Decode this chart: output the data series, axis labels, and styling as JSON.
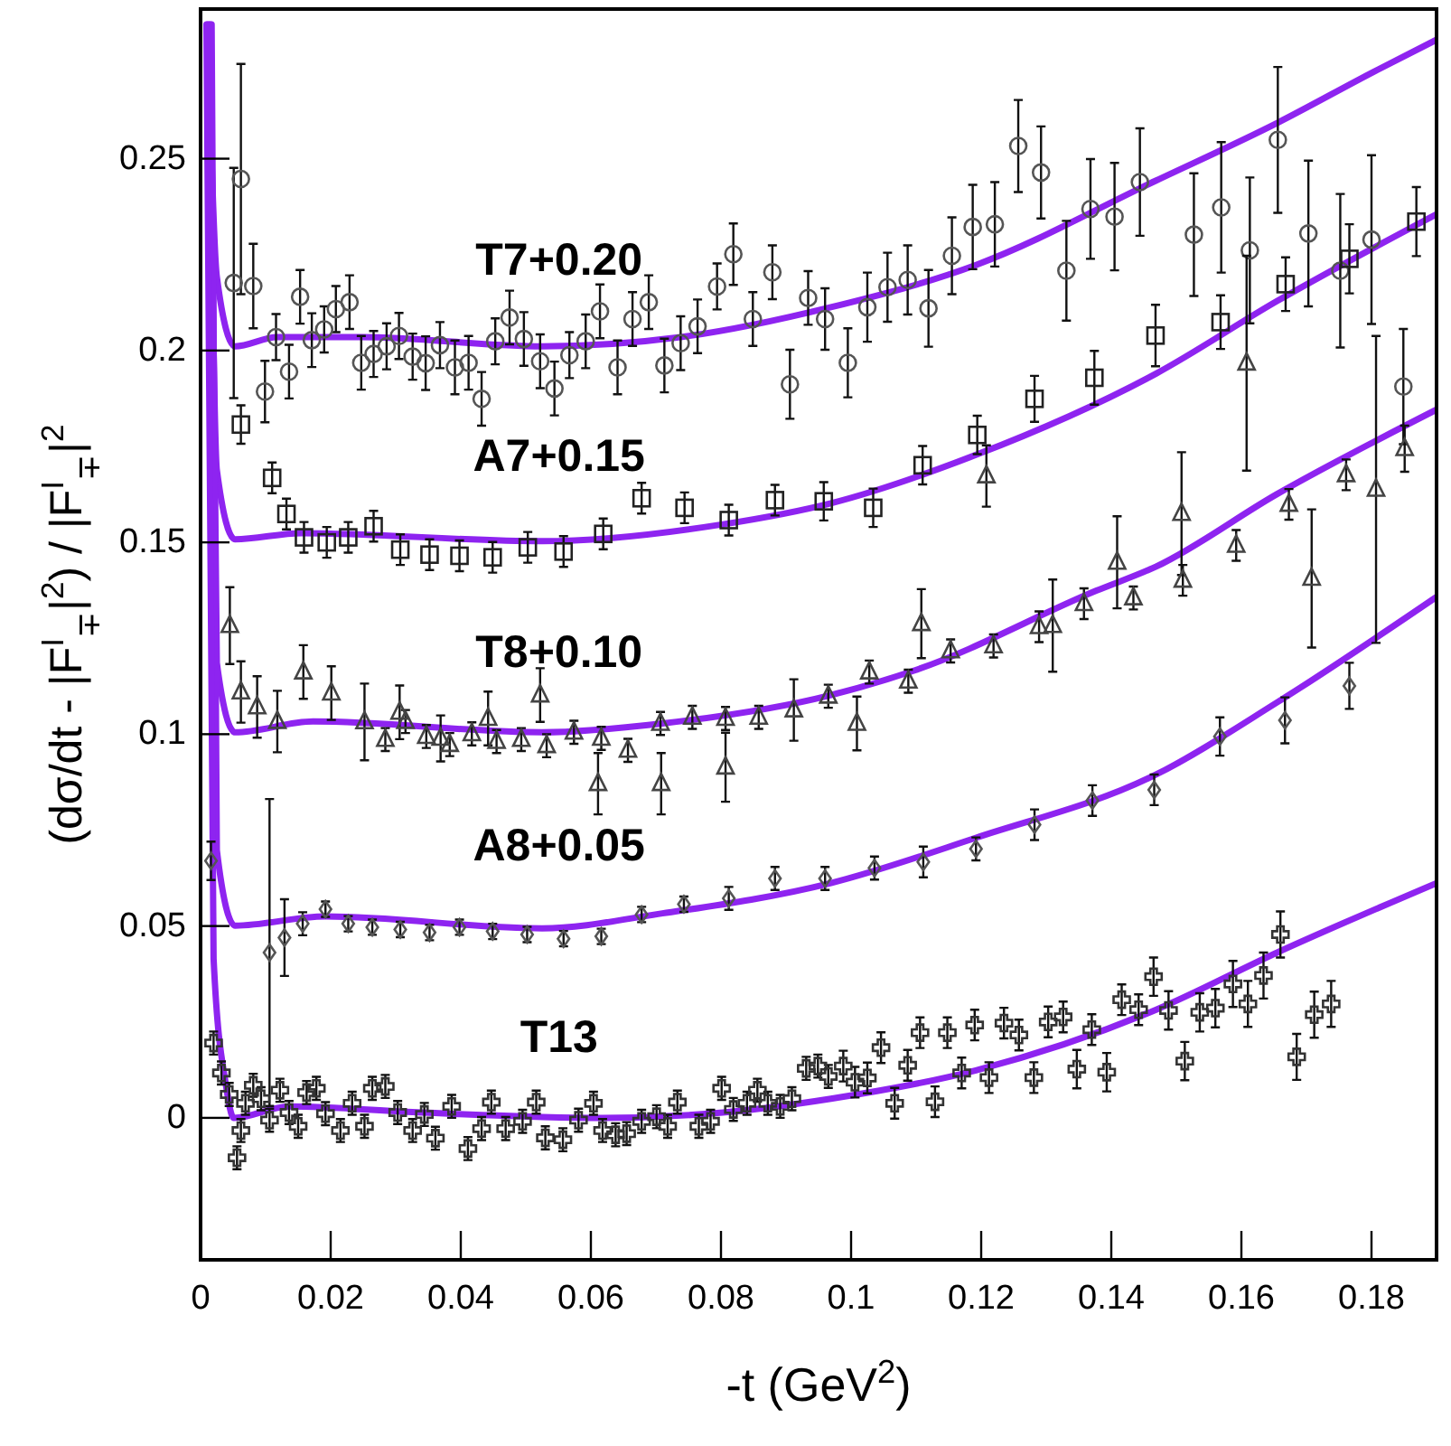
{
  "chart_data": {
    "type": "scatter",
    "xlabel": "-t (GeV$^{2}$)",
    "ylabel": "(dσ/dt - |F$^{I}$$_{∓}$|$^{2}$) / |F$^{I}$$_{∓}$|$^{2}$",
    "xlim": [
      0,
      0.19
    ],
    "ylim": [
      -0.037,
      0.289
    ],
    "xticks": [
      0,
      0.02,
      0.04,
      0.06,
      0.08,
      0.1,
      0.12,
      0.14,
      0.16,
      0.18
    ],
    "yticks": [
      0,
      0.05,
      0.1,
      0.15,
      0.2,
      0.25
    ],
    "series": [
      {
        "name": "T7+0.20",
        "marker": "circle",
        "color": "#555555",
        "x": [
          0.0062,
          0.0051,
          0.0081,
          0.0099,
          0.0116,
          0.0136,
          0.0153,
          0.0171,
          0.019,
          0.0208,
          0.0229,
          0.0247,
          0.0266,
          0.0286,
          0.0305,
          0.0326,
          0.0346,
          0.0368,
          0.0391,
          0.0412,
          0.0432,
          0.0453,
          0.0475,
          0.0497,
          0.0522,
          0.0544,
          0.0567,
          0.0592,
          0.0614,
          0.0641,
          0.0664,
          0.0689,
          0.0713,
          0.0738,
          0.0764,
          0.0794,
          0.0819,
          0.0849,
          0.0879,
          0.0906,
          0.0934,
          0.096,
          0.0995,
          0.1025,
          0.1056,
          0.1087,
          0.1119,
          0.1155,
          0.1187,
          0.1221,
          0.1257,
          0.1292,
          0.1331,
          0.1368,
          0.1405,
          0.1444,
          0.1527,
          0.1569,
          0.1613,
          0.1656,
          0.1703,
          0.1752,
          0.18,
          0.1849
        ],
        "values": [
          0.2447,
          0.2176,
          0.2168,
          0.1893,
          0.2035,
          0.1945,
          0.214,
          0.2027,
          0.2055,
          0.2108,
          0.2126,
          0.1968,
          0.1991,
          0.2011,
          0.2038,
          0.1984,
          0.1967,
          0.2014,
          0.1956,
          0.1968,
          0.1874,
          0.2024,
          0.2086,
          0.203,
          0.1972,
          0.1901,
          0.1988,
          0.2024,
          0.2102,
          0.1956,
          0.2082,
          0.2126,
          0.1961,
          0.2019,
          0.2063,
          0.2167,
          0.2251,
          0.2082,
          0.2204,
          0.1912,
          0.2137,
          0.2082,
          0.1968,
          0.2113,
          0.2165,
          0.2184,
          0.211,
          0.2247,
          0.2322,
          0.2329,
          0.2533,
          0.2464,
          0.2208,
          0.2369,
          0.2349,
          0.2439,
          0.2302,
          0.2373,
          0.2261,
          0.2549,
          0.2305,
          0.2208,
          0.2289,
          0.1906
        ],
        "errors": [
          0.03,
          0.03,
          0.011,
          0.008,
          0.006,
          0.007,
          0.007,
          0.007,
          0.006,
          0.006,
          0.007,
          0.007,
          0.006,
          0.006,
          0.006,
          0.006,
          0.007,
          0.006,
          0.007,
          0.007,
          0.007,
          0.006,
          0.007,
          0.007,
          0.007,
          0.007,
          0.006,
          0.007,
          0.007,
          0.007,
          0.007,
          0.007,
          0.007,
          0.007,
          0.007,
          0.006,
          0.008,
          0.007,
          0.007,
          0.009,
          0.007,
          0.008,
          0.009,
          0.009,
          0.009,
          0.009,
          0.01,
          0.01,
          0.011,
          0.011,
          0.012,
          0.012,
          0.013,
          0.013,
          0.014,
          0.014,
          0.016,
          0.017,
          0.019,
          0.019,
          0.019,
          0.02,
          0.022,
          0.015
        ]
      },
      {
        "name": "A7+0.15",
        "marker": "square",
        "color": "#222222",
        "x": [
          0.0062,
          0.011,
          0.0132,
          0.0159,
          0.0194,
          0.0227,
          0.0266,
          0.0307,
          0.0352,
          0.0398,
          0.0449,
          0.0503,
          0.0558,
          0.0619,
          0.0678,
          0.0744,
          0.0812,
          0.0883,
          0.0958,
          0.1034,
          0.111,
          0.1194,
          0.1282,
          0.1374,
          0.1468,
          0.1568,
          0.1668,
          0.1766,
          0.1869
        ],
        "values": [
          0.1807,
          0.1668,
          0.1574,
          0.1513,
          0.15,
          0.1513,
          0.1542,
          0.1481,
          0.1468,
          0.1465,
          0.1461,
          0.1487,
          0.1476,
          0.1522,
          0.1615,
          0.159,
          0.1558,
          0.161,
          0.1607,
          0.159,
          0.1701,
          0.178,
          0.1874,
          0.1929,
          0.2039,
          0.2074,
          0.2173,
          0.2239,
          0.2336
        ],
        "errors": [
          0.005,
          0.004,
          0.004,
          0.004,
          0.004,
          0.004,
          0.004,
          0.004,
          0.004,
          0.004,
          0.004,
          0.004,
          0.004,
          0.004,
          0.004,
          0.004,
          0.004,
          0.004,
          0.005,
          0.005,
          0.005,
          0.005,
          0.006,
          0.007,
          0.008,
          0.007,
          0.007,
          0.009,
          0.009
        ]
      },
      {
        "name": "T8+0.10",
        "marker": "triangle",
        "color": "#444444",
        "x": [
          0.0045,
          0.0062,
          0.0087,
          0.0118,
          0.0158,
          0.0201,
          0.0252,
          0.0284,
          0.0306,
          0.0315,
          0.0347,
          0.0369,
          0.0383,
          0.0417,
          0.0442,
          0.0455,
          0.0493,
          0.0522,
          0.0532,
          0.0574,
          0.0616,
          0.0611,
          0.0657,
          0.0708,
          0.0707,
          0.0756,
          0.0807,
          0.0807,
          0.0858,
          0.0912,
          0.0965,
          0.1009,
          0.1028,
          0.1088,
          0.1108,
          0.1153,
          0.1208,
          0.1219,
          0.1289,
          0.131,
          0.1358,
          0.1409,
          0.1434,
          0.151,
          0.1508,
          0.1592,
          0.1608,
          0.1673,
          0.1708,
          0.1761,
          0.1807,
          0.1851
        ],
        "values": [
          0.1283,
          0.111,
          0.1071,
          0.1033,
          0.1162,
          0.1107,
          0.1032,
          0.0986,
          0.1057,
          0.1033,
          0.0994,
          0.0989,
          0.0973,
          0.1001,
          0.1041,
          0.0981,
          0.0986,
          0.1102,
          0.097,
          0.1005,
          0.0989,
          0.0871,
          0.0958,
          0.0871,
          0.1028,
          0.1044,
          0.0914,
          0.1041,
          0.1044,
          0.1063,
          0.1099,
          0.1028,
          0.1162,
          0.1138,
          0.1288,
          0.1217,
          0.1673,
          0.123,
          0.128,
          0.1283,
          0.134,
          0.1448,
          0.1355,
          0.1401,
          0.1575,
          0.1492,
          0.1967,
          0.1599,
          0.1406,
          0.1676,
          0.1638,
          0.1744
        ],
        "errors": [
          0.01,
          0.008,
          0.008,
          0.008,
          0.007,
          0.007,
          0.01,
          0.003,
          0.007,
          0.003,
          0.003,
          0.006,
          0.003,
          0.003,
          0.007,
          0.003,
          0.003,
          0.007,
          0.003,
          0.003,
          0.003,
          0.008,
          0.003,
          0.008,
          0.003,
          0.003,
          0.009,
          0.003,
          0.003,
          0.008,
          0.003,
          0.007,
          0.003,
          0.003,
          0.009,
          0.003,
          0.008,
          0.003,
          0.004,
          0.012,
          0.004,
          0.012,
          0.003,
          0.004,
          0.016,
          0.004,
          0.028,
          0.004,
          0.018,
          0.004,
          0.04,
          0.006
        ]
      },
      {
        "name": "A8+0.05",
        "marker": "diamond",
        "color": "#555555",
        "x": [
          0.0016,
          0.0106,
          0.0129,
          0.0157,
          0.0192,
          0.0227,
          0.0264,
          0.0307,
          0.0352,
          0.0398,
          0.0449,
          0.0502,
          0.0558,
          0.0616,
          0.0678,
          0.0743,
          0.0812,
          0.0883,
          0.096,
          0.1036,
          0.1111,
          0.1192,
          0.1282,
          0.1371,
          0.1466,
          0.1567,
          0.1667,
          0.1766
        ],
        "values": [
          0.067,
          0.0431,
          0.047,
          0.0506,
          0.0544,
          0.0506,
          0.0497,
          0.0491,
          0.0483,
          0.0497,
          0.0486,
          0.0478,
          0.0467,
          0.0473,
          0.053,
          0.0557,
          0.0572,
          0.0624,
          0.0624,
          0.0651,
          0.0667,
          0.0701,
          0.0764,
          0.0827,
          0.0855,
          0.0994,
          0.1036,
          0.1126
        ],
        "errors": [
          0.005,
          0.04,
          0.01,
          0.003,
          0.002,
          0.002,
          0.002,
          0.002,
          0.002,
          0.002,
          0.002,
          0.002,
          0.002,
          0.002,
          0.002,
          0.002,
          0.003,
          0.003,
          0.003,
          0.003,
          0.004,
          0.003,
          0.004,
          0.004,
          0.004,
          0.005,
          0.006,
          0.006
        ]
      },
      {
        "name": "T13",
        "marker": "cross",
        "color": "#333333",
        "x": [
          0.002,
          0.0032,
          0.0044,
          0.0056,
          0.0062,
          0.0069,
          0.0081,
          0.0093,
          0.0106,
          0.0122,
          0.0136,
          0.015,
          0.0163,
          0.0178,
          0.0192,
          0.0215,
          0.0233,
          0.0252,
          0.0264,
          0.0284,
          0.0303,
          0.0326,
          0.0344,
          0.0361,
          0.0386,
          0.0411,
          0.0432,
          0.0447,
          0.0469,
          0.0495,
          0.0516,
          0.053,
          0.0557,
          0.0581,
          0.0604,
          0.0618,
          0.0638,
          0.0655,
          0.0678,
          0.0701,
          0.0718,
          0.0733,
          0.0766,
          0.0784,
          0.0801,
          0.0819,
          0.084,
          0.0856,
          0.0872,
          0.0891,
          0.0909,
          0.0931,
          0.0949,
          0.0965,
          0.0988,
          0.1006,
          0.1025,
          0.1046,
          0.1067,
          0.1087,
          0.1106,
          0.1129,
          0.1148,
          0.117,
          0.119,
          0.1212,
          0.1235,
          0.1258,
          0.1281,
          0.1303,
          0.1326,
          0.1347,
          0.137,
          0.1393,
          0.1416,
          0.1442,
          0.1465,
          0.1488,
          0.1513,
          0.1536,
          0.156,
          0.1587,
          0.161,
          0.1634,
          0.166,
          0.1685,
          0.1712,
          0.1738
        ],
        "values": [
          0.0195,
          0.0117,
          0.0061,
          -0.0104,
          -0.0033,
          0.0038,
          0.0085,
          0.005,
          -0.0006,
          0.0072,
          0.0014,
          -0.0022,
          0.0066,
          0.0077,
          0.0011,
          -0.0033,
          0.0038,
          -0.0022,
          0.0077,
          0.0082,
          0.0014,
          -0.0033,
          0.0009,
          -0.0053,
          0.003,
          -0.008,
          -0.0028,
          0.0041,
          -0.0028,
          -0.0009,
          0.0041,
          -0.0052,
          -0.0057,
          -0.0006,
          0.0038,
          -0.0033,
          -0.0044,
          -0.0041,
          -0.0009,
          0.0003,
          -0.0022,
          0.0041,
          -0.0022,
          -0.0009,
          0.0077,
          0.0022,
          0.0038,
          0.0072,
          0.0038,
          0.003,
          0.005,
          0.0129,
          0.0135,
          0.0108,
          0.0135,
          0.0093,
          0.0104,
          0.0183,
          0.0038,
          0.0137,
          0.0222,
          0.0042,
          0.0222,
          0.0117,
          0.0242,
          0.0105,
          0.0247,
          0.0216,
          0.0105,
          0.025,
          0.0263,
          0.0127,
          0.023,
          0.0119,
          0.0308,
          0.0282,
          0.0368,
          0.028,
          0.0148,
          0.0275,
          0.0286,
          0.0349,
          0.0297,
          0.0371,
          0.0478,
          0.0159,
          0.0269,
          0.0297
        ],
        "errors": [
          0.003,
          0.003,
          0.003,
          0.003,
          0.003,
          0.003,
          0.003,
          0.003,
          0.003,
          0.003,
          0.003,
          0.003,
          0.003,
          0.003,
          0.003,
          0.003,
          0.003,
          0.003,
          0.003,
          0.003,
          0.003,
          0.003,
          0.003,
          0.003,
          0.003,
          0.003,
          0.003,
          0.003,
          0.003,
          0.003,
          0.003,
          0.003,
          0.003,
          0.003,
          0.003,
          0.003,
          0.003,
          0.003,
          0.003,
          0.003,
          0.003,
          0.003,
          0.003,
          0.003,
          0.003,
          0.003,
          0.003,
          0.003,
          0.003,
          0.003,
          0.003,
          0.003,
          0.003,
          0.003,
          0.004,
          0.004,
          0.004,
          0.004,
          0.004,
          0.004,
          0.004,
          0.004,
          0.004,
          0.004,
          0.004,
          0.004,
          0.004,
          0.004,
          0.004,
          0.004,
          0.004,
          0.005,
          0.004,
          0.005,
          0.004,
          0.004,
          0.005,
          0.005,
          0.005,
          0.005,
          0.005,
          0.006,
          0.006,
          0.006,
          0.006,
          0.006,
          0.006,
          0.006
        ]
      },
      {
        "type": "line",
        "color": "#8e24f0",
        "x": [
          0.0011,
          0.0025,
          0.0053,
          0.0118,
          0.0247,
          0.0525,
          0.0738,
          0.0969,
          0.1192,
          0.1469,
          0.1655,
          0.1803,
          0.19
        ],
        "values": [
          0.285,
          0.2192,
          0.2011,
          0.2035,
          0.2035,
          0.2011,
          0.2035,
          0.2113,
          0.2223,
          0.2443,
          0.2593,
          0.2726,
          0.281
        ]
      },
      {
        "type": "line",
        "color": "#8e24f0",
        "x": [
          0.0013,
          0.0025,
          0.0053,
          0.0155,
          0.0525,
          0.0803,
          0.0969,
          0.1192,
          0.1469,
          0.1655,
          0.19
        ],
        "values": [
          0.285,
          0.1689,
          0.1508,
          0.1524,
          0.1503,
          0.1547,
          0.1602,
          0.1728,
          0.194,
          0.2129,
          0.2355
        ]
      },
      {
        "type": "line",
        "color": "#8e24f0",
        "x": [
          0.0015,
          0.0025,
          0.0053,
          0.0173,
          0.0525,
          0.071,
          0.0969,
          0.1099,
          0.1377,
          0.1469,
          0.1655,
          0.19
        ],
        "values": [
          0.285,
          0.1186,
          0.1005,
          0.1033,
          0.1005,
          0.1028,
          0.1102,
          0.1167,
          0.1374,
          0.1437,
          0.1626,
          0.1846
        ]
      },
      {
        "type": "line",
        "color": "#8e24f0",
        "x": [
          0.0017,
          0.0025,
          0.0053,
          0.0192,
          0.0525,
          0.071,
          0.0969,
          0.1192,
          0.1469,
          0.1655,
          0.19
        ],
        "values": [
          0.285,
          0.0698,
          0.0501,
          0.0525,
          0.0494,
          0.0533,
          0.0612,
          0.073,
          0.0895,
          0.1083,
          0.1358
        ]
      },
      {
        "type": "line",
        "color": "#8e24f0",
        "x": [
          0.0009,
          0.002,
          0.0039,
          0.0051,
          0.0136,
          0.034,
          0.0618,
          0.0803,
          0.0969,
          0.1192,
          0.1469,
          0.1655,
          0.19
        ],
        "values": [
          0.285,
          0.0415,
          0.0085,
          0,
          0.003,
          0.0014,
          0,
          0.0014,
          0.005,
          0.0124,
          0.0282,
          0.0431,
          0.0612
        ]
      }
    ]
  }
}
